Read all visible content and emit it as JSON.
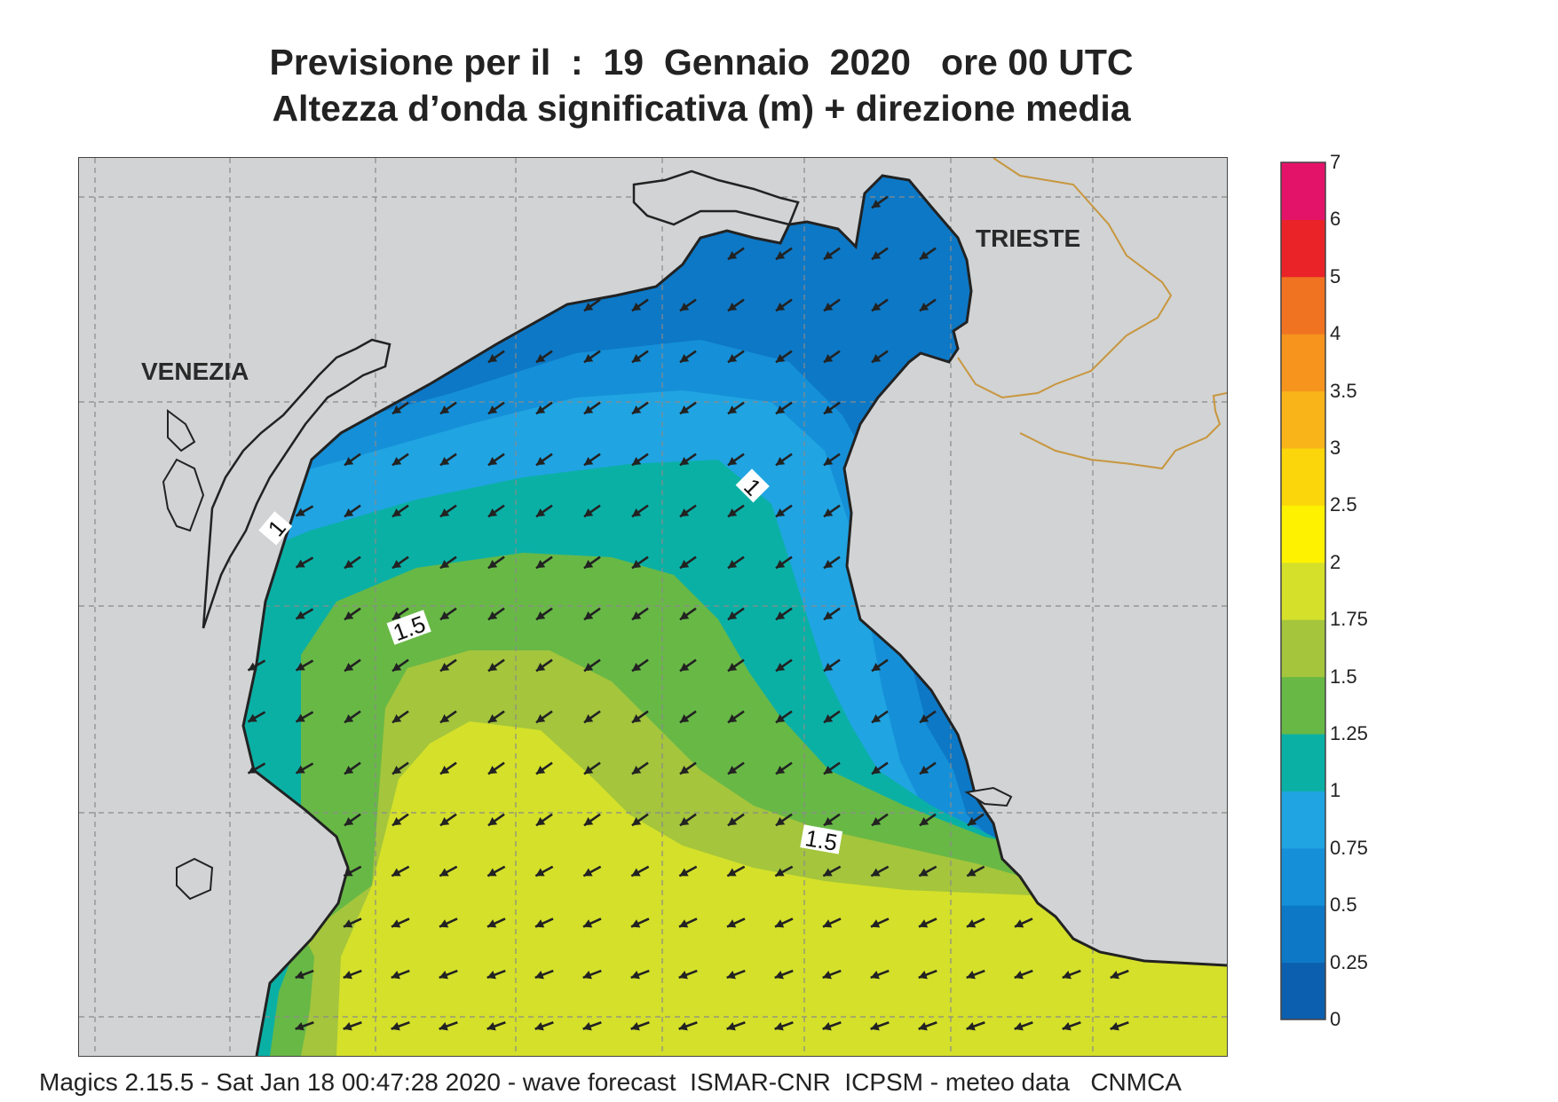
{
  "header": {
    "title_line1": "Previsione per il  :  19  Gennaio  2020   ore 00 UTC",
    "title_line2": "Altezza d’onda significativa (m) + direzione media"
  },
  "map": {
    "city_labels": [
      "VENEZIA",
      "TRIESTE"
    ],
    "contour_labels": [
      "1",
      "1",
      "1.5",
      "1.5"
    ],
    "land_color": "#d1d3d4",
    "coast_color": "#222222",
    "border_color": "#c8963e",
    "arrow_color": "#222222",
    "arrow_direction": "southwest"
  },
  "colorbar": {
    "levels": [
      "0",
      "0.25",
      "0.5",
      "0.75",
      "1",
      "1.25",
      "1.5",
      "1.75",
      "2",
      "2.5",
      "3",
      "3.5",
      "4",
      "5",
      "6",
      "7"
    ],
    "colors": [
      "#0c5fae",
      "#0d78c6",
      "#1590d8",
      "#20a4e2",
      "#0bb0a5",
      "#68b846",
      "#a4c53c",
      "#d4e02a",
      "#fff200",
      "#fbd60a",
      "#f9b41a",
      "#f6941e",
      "#f07321",
      "#ea2328",
      "#e4136a"
    ]
  },
  "footer": {
    "text": "Magics 2.15.5 - Sat Jan 18 00:47:28 2020 - wave forecast  ISMAR-CNR  ICPSM - meteo data   CNMCA"
  }
}
